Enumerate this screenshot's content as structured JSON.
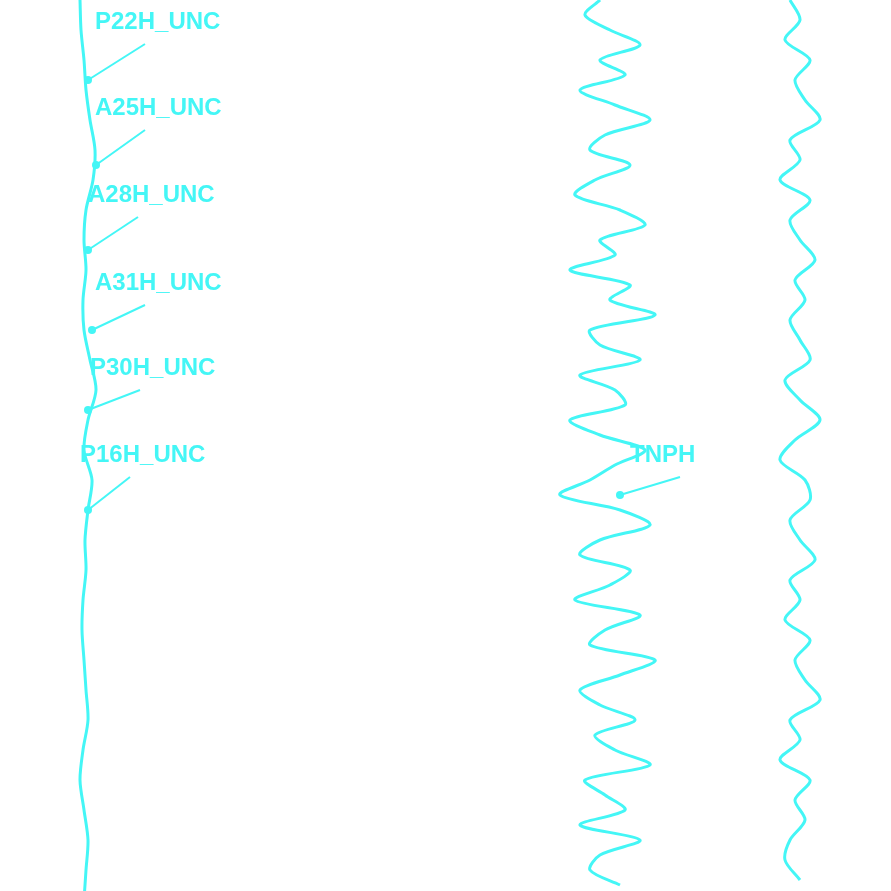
{
  "chart_data": {
    "type": "line",
    "xlim": [
      0,
      891
    ],
    "ylim": [
      0,
      891
    ],
    "grid": false,
    "tick_labels": false,
    "color": "#44f6f6",
    "series": [
      {
        "color": "#44f6f6",
        "y": [
          0,
          30,
          60,
          90,
          120,
          150,
          180,
          210,
          240,
          270,
          300,
          330,
          360,
          390,
          420,
          450,
          480,
          510,
          540,
          570,
          600,
          630,
          660,
          690,
          720,
          750,
          780,
          810,
          840,
          870,
          900
        ],
        "values": [
          80,
          81,
          84,
          86,
          90,
          95,
          93,
          86,
          84,
          86,
          83,
          84,
          90,
          96,
          88,
          84,
          92,
          88,
          85,
          86,
          83,
          82,
          84,
          86,
          88,
          83,
          80,
          84,
          88,
          86,
          84
        ]
      },
      {
        "name": "TNPH",
        "color": "#44f6f6",
        "y": [
          0,
          15,
          30,
          45,
          60,
          75,
          90,
          105,
          120,
          135,
          150,
          165,
          180,
          195,
          210,
          225,
          240,
          255,
          270,
          285,
          300,
          315,
          330,
          345,
          360,
          375,
          390,
          405,
          420,
          435,
          450,
          465,
          480,
          495,
          510,
          525,
          540,
          555,
          570,
          585,
          600,
          615,
          630,
          645,
          660,
          675,
          690,
          705,
          720,
          735,
          750,
          765,
          780,
          795,
          810,
          825,
          840,
          855,
          870,
          885
        ],
        "values": [
          600,
          585,
          610,
          640,
          600,
          625,
          580,
          615,
          650,
          605,
          590,
          630,
          595,
          575,
          620,
          645,
          600,
          615,
          570,
          630,
          610,
          655,
          590,
          600,
          640,
          580,
          615,
          625,
          570,
          600,
          645,
          615,
          590,
          560,
          620,
          650,
          600,
          580,
          630,
          610,
          575,
          640,
          605,
          590,
          655,
          620,
          580,
          600,
          635,
          595,
          615,
          650,
          585,
          605,
          625,
          580,
          640,
          600,
          590,
          620
        ]
      },
      {
        "color": "#44f6f6",
        "y": [
          0,
          20,
          40,
          60,
          80,
          100,
          120,
          140,
          160,
          180,
          200,
          220,
          240,
          260,
          280,
          300,
          320,
          340,
          360,
          380,
          400,
          420,
          440,
          460,
          480,
          500,
          520,
          540,
          560,
          580,
          600,
          620,
          640,
          660,
          680,
          700,
          720,
          740,
          760,
          780,
          800,
          820,
          840,
          860,
          880
        ],
        "values": [
          790,
          800,
          785,
          810,
          795,
          805,
          820,
          790,
          800,
          780,
          810,
          790,
          800,
          815,
          795,
          805,
          790,
          800,
          810,
          785,
          800,
          820,
          795,
          780,
          805,
          810,
          790,
          800,
          815,
          790,
          800,
          785,
          810,
          795,
          805,
          820,
          790,
          800,
          780,
          810,
          795,
          805,
          790,
          785,
          800
        ]
      }
    ],
    "annotations": [
      {
        "text": "P22H_UNC",
        "x": 95,
        "y": 22,
        "point": [
          88,
          80
        ]
      },
      {
        "text": "A25H_UNC",
        "x": 95,
        "y": 108,
        "point": [
          96,
          165
        ]
      },
      {
        "text": "A28H_UNC",
        "x": 88,
        "y": 195,
        "point": [
          88,
          250
        ]
      },
      {
        "text": "A31H_UNC",
        "x": 95,
        "y": 283,
        "point": [
          92,
          330
        ]
      },
      {
        "text": "P30H_UNC",
        "x": 90,
        "y": 368,
        "point": [
          88,
          410
        ]
      },
      {
        "text": "P16H_UNC",
        "x": 80,
        "y": 455,
        "point": [
          88,
          510
        ]
      },
      {
        "text": "TNPH",
        "x": 630,
        "y": 455,
        "point": [
          620,
          495
        ]
      }
    ]
  }
}
